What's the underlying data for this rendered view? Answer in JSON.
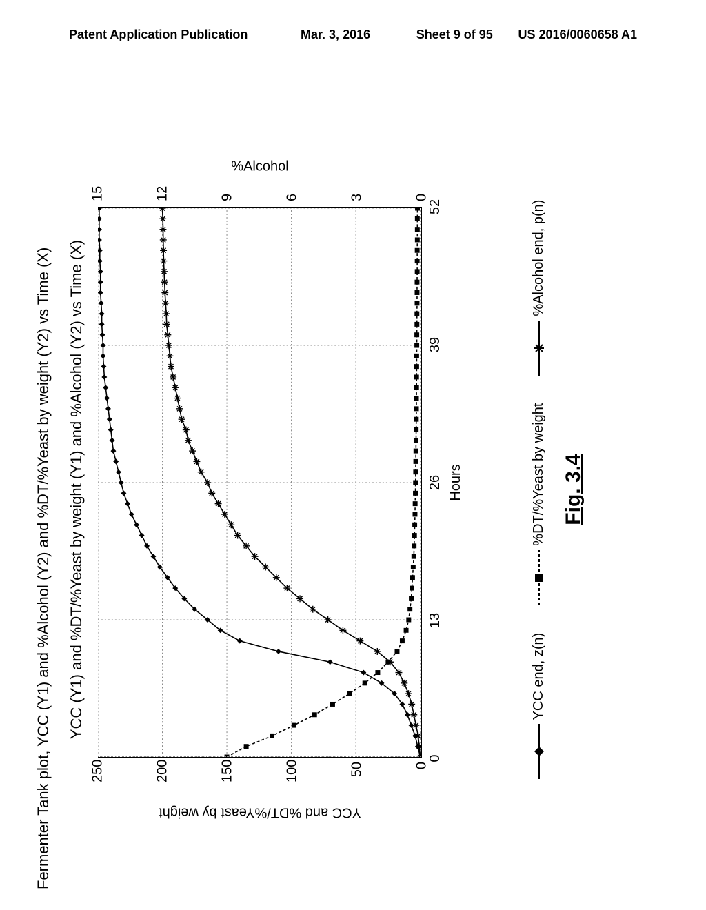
{
  "header": {
    "left": "Patent Application Publication",
    "date": "Mar. 3, 2016",
    "sheet": "Sheet 9 of 95",
    "pubno": "US 2016/0060658 A1"
  },
  "chart": {
    "type": "line",
    "title_outer": "Fermenter Tank plot, YCC (Y1) and %Alcohol (Y2) and %DT/%Yeast by weight (Y2) vs Time (X)",
    "title_inner": "YCC (Y1) and %DT/%Yeast by weight (Y1) and %Alcohol (Y2) vs Time (X)",
    "xaxis": {
      "label": "Hours",
      "min": 0,
      "max": 52,
      "ticks": [
        0,
        13,
        26,
        39,
        52
      ]
    },
    "yaxis_left": {
      "label": "YCC and %DT/%Yeast by weight",
      "min": 0,
      "max": 250,
      "ticks": [
        0,
        50,
        100,
        150,
        200,
        250
      ]
    },
    "yaxis_right": {
      "label": "%Alcohol",
      "min": 0,
      "max": 15,
      "ticks": [
        0,
        3,
        6,
        9,
        12,
        15
      ]
    },
    "legend": {
      "items": [
        {
          "label": "YCC end, z(n)",
          "marker": "diamond"
        },
        {
          "label": "%DT/%Yeast by weight",
          "marker": "square"
        },
        {
          "label": "%Alcohol end, p(n)",
          "marker": "star"
        }
      ]
    },
    "figure_caption": "Fig. 3.4",
    "series_ycc": {
      "axis": "left",
      "marker": "diamond",
      "points": [
        [
          0,
          0
        ],
        [
          1,
          2
        ],
        [
          2,
          4
        ],
        [
          3,
          7
        ],
        [
          4,
          10
        ],
        [
          5,
          14
        ],
        [
          6,
          20
        ],
        [
          7,
          30
        ],
        [
          8,
          44
        ],
        [
          9,
          70
        ],
        [
          10,
          110
        ],
        [
          11,
          140
        ],
        [
          12,
          155
        ],
        [
          13,
          165
        ],
        [
          14,
          175
        ],
        [
          15,
          183
        ],
        [
          16,
          190
        ],
        [
          17,
          196
        ],
        [
          18,
          202
        ],
        [
          19,
          207
        ],
        [
          20,
          212
        ],
        [
          21,
          216
        ],
        [
          22,
          220
        ],
        [
          23,
          224
        ],
        [
          24,
          227
        ],
        [
          25,
          230
        ],
        [
          26,
          232
        ],
        [
          27,
          234
        ],
        [
          28,
          236
        ],
        [
          29,
          238
        ],
        [
          30,
          239
        ],
        [
          31,
          240
        ],
        [
          32,
          241
        ],
        [
          33,
          242
        ],
        [
          34,
          243
        ],
        [
          35,
          244
        ],
        [
          36,
          245
        ],
        [
          37,
          245.5
        ],
        [
          38,
          246
        ],
        [
          39,
          246
        ],
        [
          40,
          246.5
        ],
        [
          41,
          247
        ],
        [
          42,
          247
        ],
        [
          43,
          247.5
        ],
        [
          44,
          248
        ],
        [
          45,
          248
        ],
        [
          46,
          248
        ],
        [
          47,
          248.5
        ],
        [
          48,
          248.5
        ],
        [
          49,
          249
        ],
        [
          50,
          249
        ],
        [
          51,
          249
        ],
        [
          52,
          249
        ]
      ]
    },
    "series_dt": {
      "axis": "left",
      "marker": "square",
      "points": [
        [
          0,
          150
        ],
        [
          1,
          135
        ],
        [
          2,
          115
        ],
        [
          3,
          98
        ],
        [
          4,
          82
        ],
        [
          5,
          68
        ],
        [
          6,
          55
        ],
        [
          7,
          43
        ],
        [
          8,
          33
        ],
        [
          9,
          25
        ],
        [
          10,
          18
        ],
        [
          11,
          14
        ],
        [
          12,
          11
        ],
        [
          13,
          9
        ],
        [
          14,
          8
        ],
        [
          15,
          7
        ],
        [
          16,
          6.5
        ],
        [
          17,
          6
        ],
        [
          18,
          5.5
        ],
        [
          19,
          5
        ],
        [
          20,
          4.8
        ],
        [
          21,
          4.5
        ],
        [
          22,
          4.3
        ],
        [
          23,
          4.1
        ],
        [
          24,
          4
        ],
        [
          25,
          3.8
        ],
        [
          26,
          3.7
        ],
        [
          27,
          3.6
        ],
        [
          28,
          3.5
        ],
        [
          29,
          3.4
        ],
        [
          30,
          3.3
        ],
        [
          31,
          3.2
        ],
        [
          32,
          3.1
        ],
        [
          33,
          3
        ],
        [
          34,
          3
        ],
        [
          35,
          2.9
        ],
        [
          36,
          2.9
        ],
        [
          37,
          2.8
        ],
        [
          38,
          2.8
        ],
        [
          39,
          2.7
        ],
        [
          40,
          2.7
        ],
        [
          41,
          2.6
        ],
        [
          42,
          2.6
        ],
        [
          43,
          2.5
        ],
        [
          44,
          2.5
        ],
        [
          45,
          2.5
        ],
        [
          46,
          2.4
        ],
        [
          47,
          2.4
        ],
        [
          48,
          2.4
        ],
        [
          49,
          2.3
        ],
        [
          50,
          2.3
        ],
        [
          51,
          2.3
        ],
        [
          52,
          2.2
        ]
      ]
    },
    "series_alcohol": {
      "axis": "right",
      "marker": "star",
      "points": [
        [
          0,
          0
        ],
        [
          1,
          0.05
        ],
        [
          2,
          0.1
        ],
        [
          3,
          0.2
        ],
        [
          4,
          0.3
        ],
        [
          5,
          0.4
        ],
        [
          6,
          0.55
        ],
        [
          7,
          0.75
        ],
        [
          8,
          1.0
        ],
        [
          9,
          1.4
        ],
        [
          10,
          2.0
        ],
        [
          11,
          2.8
        ],
        [
          12,
          3.6
        ],
        [
          13,
          4.3
        ],
        [
          14,
          5.0
        ],
        [
          15,
          5.6
        ],
        [
          16,
          6.2
        ],
        [
          17,
          6.7
        ],
        [
          18,
          7.2
        ],
        [
          19,
          7.7
        ],
        [
          20,
          8.1
        ],
        [
          21,
          8.5
        ],
        [
          22,
          8.8
        ],
        [
          23,
          9.1
        ],
        [
          24,
          9.4
        ],
        [
          25,
          9.7
        ],
        [
          26,
          9.9
        ],
        [
          27,
          10.2
        ],
        [
          28,
          10.4
        ],
        [
          29,
          10.6
        ],
        [
          30,
          10.8
        ],
        [
          31,
          10.9
        ],
        [
          32,
          11.1
        ],
        [
          33,
          11.2
        ],
        [
          34,
          11.3
        ],
        [
          35,
          11.4
        ],
        [
          36,
          11.5
        ],
        [
          37,
          11.6
        ],
        [
          38,
          11.65
        ],
        [
          39,
          11.7
        ],
        [
          40,
          11.75
        ],
        [
          41,
          11.8
        ],
        [
          42,
          11.82
        ],
        [
          43,
          11.85
        ],
        [
          44,
          11.88
        ],
        [
          45,
          11.9
        ],
        [
          46,
          11.92
        ],
        [
          47,
          11.94
        ],
        [
          48,
          11.95
        ],
        [
          49,
          11.96
        ],
        [
          50,
          11.97
        ],
        [
          51,
          11.98
        ],
        [
          52,
          12.0
        ]
      ]
    },
    "colors": {
      "line": "#000000",
      "grid": "#888888",
      "bg": "#ffffff"
    }
  }
}
